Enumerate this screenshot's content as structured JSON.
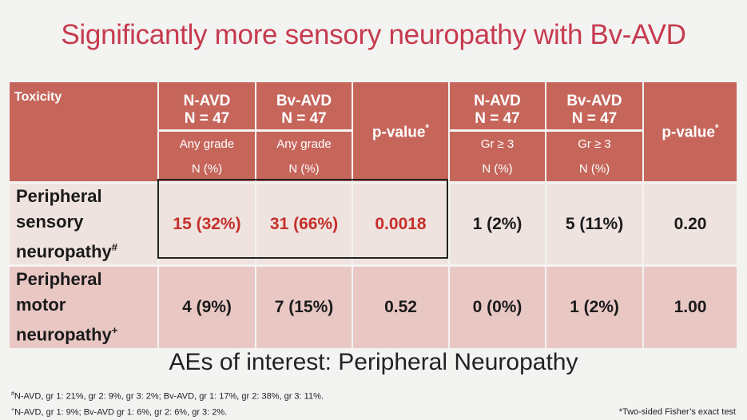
{
  "title": "Significantly more sensory neuropathy with Bv-AVD",
  "table": {
    "toxicity_header": "Toxicity",
    "groups": [
      {
        "arm": "N-AVD",
        "n": "N = 47",
        "grade": "Any grade",
        "unit": "N (%)"
      },
      {
        "arm": "Bv-AVD",
        "n": "N = 47",
        "grade": "Any grade",
        "unit": "N (%)"
      },
      {
        "arm": "N-AVD",
        "n": "N = 47",
        "grade": "Gr ≥ 3",
        "unit": "N (%)"
      },
      {
        "arm": "Bv-AVD",
        "n": "N = 47",
        "grade": "Gr ≥ 3",
        "unit": "N (%)"
      }
    ],
    "pvalue_label": "p-value",
    "pvalue_mark": "*",
    "rows": [
      {
        "label": [
          "Peripheral",
          "sensory",
          "neuropathy"
        ],
        "mark": "#",
        "values": [
          "15 (32%)",
          "31 (66%)",
          "0.0018",
          "1 (2%)",
          "5 (11%)",
          "0.20"
        ]
      },
      {
        "label": [
          "Peripheral",
          "motor",
          "neuropathy"
        ],
        "mark": "+",
        "values": [
          "4 (9%)",
          "7 (15%)",
          "0.52",
          "0 (0%)",
          "1 (2%)",
          "1.00"
        ]
      }
    ],
    "highlight_color": "#c52f2a"
  },
  "subtitle": "AEs of interest: Peripheral Neuropathy",
  "footnotes": {
    "sensory_mark": "#",
    "sensory": "N-AVD, gr 1: 21%, gr 2: 9%, gr 3: 2%; Bv-AVD, gr 1: 17%, gr 2: 38%, gr 3: 11%.",
    "motor_mark": "+",
    "motor": "N-AVD, gr 1: 9%; Bv-AVD gr 1: 6%, gr 2: 6%, gr 3: 2%.",
    "test": "*Two-sided Fisher’s exact test"
  }
}
